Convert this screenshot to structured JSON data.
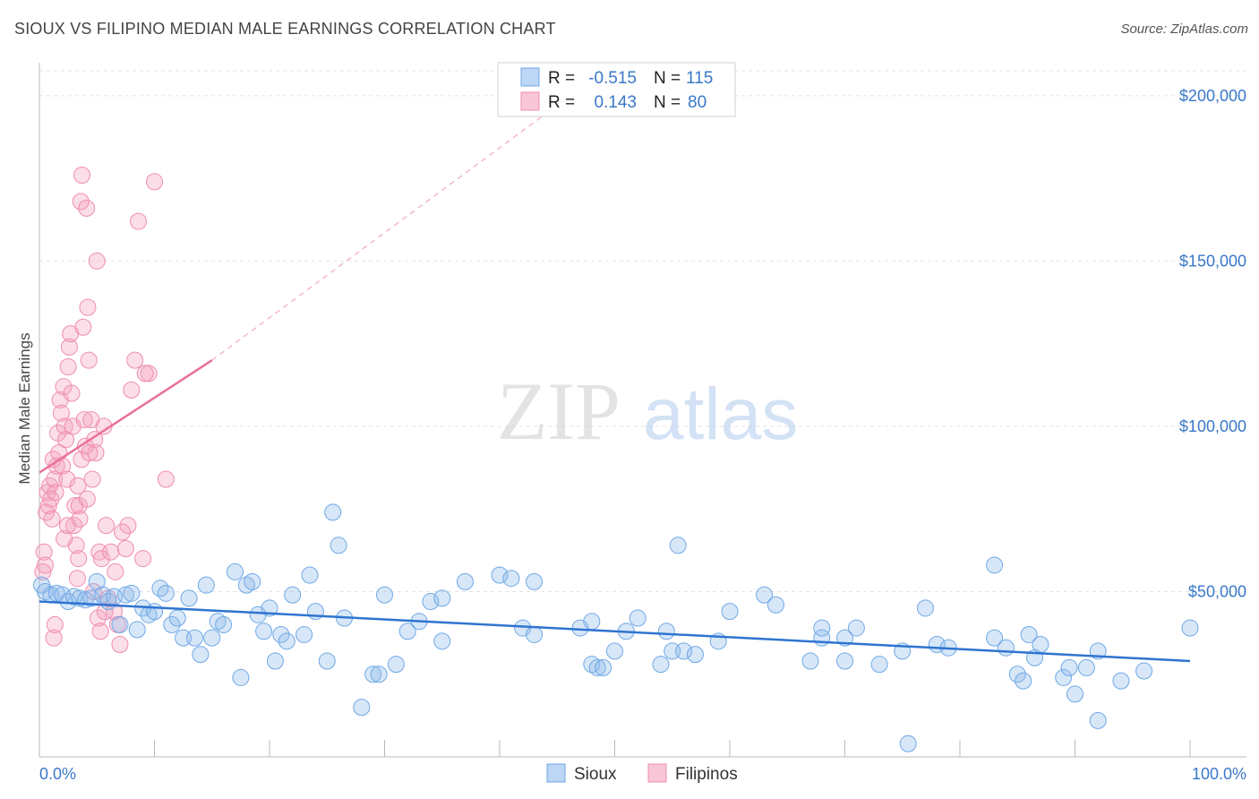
{
  "title": "SIOUX VS FILIPINO MEDIAN MALE EARNINGS CORRELATION CHART",
  "source": "Source: ZipAtlas.com",
  "watermark": {
    "zip": "ZIP",
    "atlas": "atlas"
  },
  "colors": {
    "sioux": "#6fa8e6",
    "sioux_line": "#2f74d0",
    "filipinos": "#f08cb0",
    "filipinos_line": "#e8709a",
    "axis_text": "#3a78c9"
  },
  "legend": {
    "rows": [
      {
        "r_label": "R =",
        "r_value": "-0.515",
        "n_label": "N =",
        "n_value": "115"
      },
      {
        "r_label": "R =",
        "r_value": "0.143",
        "n_label": "N =",
        "n_value": "80"
      }
    ]
  },
  "bottom_legend": [
    "Sioux",
    "Filipinos"
  ],
  "chart_data": {
    "type": "scatter",
    "title": "SIOUX VS FILIPINO MEDIAN MALE EARNINGS CORRELATION CHART",
    "xlabel": "",
    "ylabel": "Median Male Earnings",
    "xlim": [
      0,
      100
    ],
    "ylim": [
      0,
      210000
    ],
    "x_tick_labels": [
      "0.0%",
      "100.0%"
    ],
    "y_ticks": [
      50000,
      100000,
      150000,
      200000
    ],
    "y_tick_labels": [
      "$50,000",
      "$100,000",
      "$150,000",
      "$200,000"
    ],
    "series": [
      {
        "name": "Sioux",
        "R": -0.515,
        "N": 115,
        "trend": {
          "x": [
            0,
            100
          ],
          "y": [
            47000,
            29000
          ]
        },
        "points": [
          [
            0.2,
            52000
          ],
          [
            0.5,
            50000
          ],
          [
            1,
            49000
          ],
          [
            1.5,
            49500
          ],
          [
            2,
            49000
          ],
          [
            2.5,
            47000
          ],
          [
            3,
            48500
          ],
          [
            3.5,
            48000
          ],
          [
            4,
            47500
          ],
          [
            4.5,
            48000
          ],
          [
            5,
            53000
          ],
          [
            5.5,
            49000
          ],
          [
            6,
            47000
          ],
          [
            6.5,
            48500
          ],
          [
            7,
            40000
          ],
          [
            7.5,
            49000
          ],
          [
            8,
            49500
          ],
          [
            8.5,
            38500
          ],
          [
            9,
            45000
          ],
          [
            9.5,
            43000
          ],
          [
            10,
            44000
          ],
          [
            10.5,
            51000
          ],
          [
            11,
            49500
          ],
          [
            11.5,
            40000
          ],
          [
            12,
            42000
          ],
          [
            12.5,
            36000
          ],
          [
            13,
            48000
          ],
          [
            13.5,
            36000
          ],
          [
            14,
            31000
          ],
          [
            14.5,
            52000
          ],
          [
            15,
            36000
          ],
          [
            15.5,
            41000
          ],
          [
            16,
            40000
          ],
          [
            17,
            56000
          ],
          [
            17.5,
            24000
          ],
          [
            18,
            52000
          ],
          [
            18.5,
            53000
          ],
          [
            19,
            43000
          ],
          [
            19.5,
            38000
          ],
          [
            20,
            45000
          ],
          [
            20.5,
            29000
          ],
          [
            21,
            37000
          ],
          [
            21.5,
            35000
          ],
          [
            22,
            49000
          ],
          [
            23,
            37000
          ],
          [
            23.5,
            55000
          ],
          [
            24,
            44000
          ],
          [
            25,
            29000
          ],
          [
            25.5,
            74000
          ],
          [
            26,
            64000
          ],
          [
            26.5,
            42000
          ],
          [
            28,
            15000
          ],
          [
            29,
            25000
          ],
          [
            29.5,
            25000
          ],
          [
            30,
            49000
          ],
          [
            31,
            28000
          ],
          [
            32,
            38000
          ],
          [
            33,
            41000
          ],
          [
            34,
            47000
          ],
          [
            35,
            48000
          ],
          [
            35,
            35000
          ],
          [
            37,
            53000
          ],
          [
            40,
            55000
          ],
          [
            41,
            54000
          ],
          [
            42,
            39000
          ],
          [
            43,
            53000
          ],
          [
            43,
            37000
          ],
          [
            47,
            39000
          ],
          [
            48,
            28000
          ],
          [
            48,
            41000
          ],
          [
            48.5,
            27000
          ],
          [
            49,
            27000
          ],
          [
            50,
            32000
          ],
          [
            51,
            38000
          ],
          [
            52,
            42000
          ],
          [
            54,
            28000
          ],
          [
            54.5,
            38000
          ],
          [
            55.5,
            64000
          ],
          [
            55,
            32000
          ],
          [
            56,
            32000
          ],
          [
            57,
            31000
          ],
          [
            59,
            35000
          ],
          [
            60,
            44000
          ],
          [
            63,
            49000
          ],
          [
            64,
            46000
          ],
          [
            67,
            29000
          ],
          [
            68,
            36000
          ],
          [
            68,
            39000
          ],
          [
            70,
            36000
          ],
          [
            70,
            29000
          ],
          [
            71,
            39000
          ],
          [
            73,
            28000
          ],
          [
            75,
            32000
          ],
          [
            75.5,
            4000
          ],
          [
            77,
            45000
          ],
          [
            78,
            34000
          ],
          [
            79,
            33000
          ],
          [
            83,
            58000
          ],
          [
            83,
            36000
          ],
          [
            84,
            33000
          ],
          [
            85,
            25000
          ],
          [
            85.5,
            23000
          ],
          [
            86,
            37000
          ],
          [
            86.5,
            30000
          ],
          [
            87,
            34000
          ],
          [
            89,
            24000
          ],
          [
            89.5,
            27000
          ],
          [
            90,
            19000
          ],
          [
            91,
            27000
          ],
          [
            92,
            32000
          ],
          [
            92,
            11000
          ],
          [
            94,
            23000
          ],
          [
            96,
            26000
          ],
          [
            100,
            39000
          ]
        ]
      },
      {
        "name": "Filipinos",
        "R": 0.143,
        "N": 80,
        "trend": {
          "x": [
            0,
            15
          ],
          "y": [
            86000,
            120000
          ]
        },
        "trend_dashed": {
          "x": [
            15,
            50
          ],
          "y": [
            120000,
            210000
          ]
        },
        "points": [
          [
            0.3,
            56000
          ],
          [
            0.4,
            62000
          ],
          [
            0.5,
            58000
          ],
          [
            0.6,
            74000
          ],
          [
            0.7,
            80000
          ],
          [
            0.8,
            76000
          ],
          [
            0.9,
            82000
          ],
          [
            1,
            78000
          ],
          [
            1.1,
            72000
          ],
          [
            1.2,
            90000
          ],
          [
            1.3,
            84000
          ],
          [
            1.4,
            80000
          ],
          [
            1.5,
            88000
          ],
          [
            1.6,
            98000
          ],
          [
            1.7,
            92000
          ],
          [
            1.8,
            108000
          ],
          [
            1.9,
            104000
          ],
          [
            2,
            88000
          ],
          [
            2.1,
            112000
          ],
          [
            2.2,
            100000
          ],
          [
            2.3,
            96000
          ],
          [
            2.4,
            84000
          ],
          [
            2.5,
            118000
          ],
          [
            2.6,
            124000
          ],
          [
            2.7,
            128000
          ],
          [
            2.8,
            110000
          ],
          [
            2.9,
            100000
          ],
          [
            3,
            70000
          ],
          [
            3.1,
            76000
          ],
          [
            3.2,
            64000
          ],
          [
            3.3,
            54000
          ],
          [
            3.4,
            60000
          ],
          [
            3.5,
            72000
          ],
          [
            3.6,
            168000
          ],
          [
            3.7,
            176000
          ],
          [
            3.8,
            130000
          ],
          [
            3.9,
            102000
          ],
          [
            4,
            94000
          ],
          [
            4.1,
            166000
          ],
          [
            4.2,
            136000
          ],
          [
            4.3,
            120000
          ],
          [
            4.5,
            102000
          ],
          [
            4.6,
            84000
          ],
          [
            4.7,
            50000
          ],
          [
            4.8,
            96000
          ],
          [
            4.9,
            92000
          ],
          [
            5,
            150000
          ],
          [
            5.2,
            62000
          ],
          [
            5.4,
            60000
          ],
          [
            5.6,
            100000
          ],
          [
            5.8,
            70000
          ],
          [
            6,
            48000
          ],
          [
            6.2,
            62000
          ],
          [
            6.5,
            44000
          ],
          [
            6.8,
            40000
          ],
          [
            7,
            34000
          ],
          [
            7.5,
            63000
          ],
          [
            7.7,
            70000
          ],
          [
            8,
            111000
          ],
          [
            8.3,
            120000
          ],
          [
            8.6,
            162000
          ],
          [
            9,
            60000
          ],
          [
            9.5,
            116000
          ],
          [
            10,
            174000
          ],
          [
            11,
            84000
          ],
          [
            1.25,
            36000
          ],
          [
            1.35,
            40000
          ],
          [
            2.15,
            66000
          ],
          [
            2.45,
            70000
          ],
          [
            3.35,
            82000
          ],
          [
            3.45,
            76000
          ],
          [
            3.65,
            90000
          ],
          [
            4.15,
            78000
          ],
          [
            4.35,
            92000
          ],
          [
            5.1,
            42000
          ],
          [
            5.3,
            38000
          ],
          [
            5.7,
            44000
          ],
          [
            6.6,
            56000
          ],
          [
            7.2,
            68000
          ],
          [
            9.2,
            116000
          ]
        ]
      }
    ]
  }
}
